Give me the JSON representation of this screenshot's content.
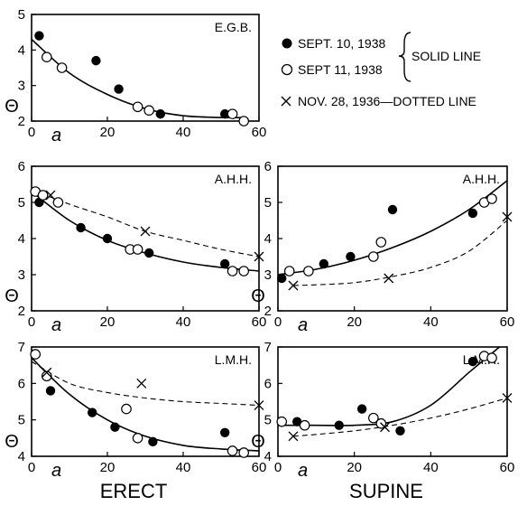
{
  "legend": {
    "items": [
      {
        "label": "SEPT. 10, 1938",
        "marker": "filled-circle"
      },
      {
        "label": "SEPT 11, 1938",
        "marker": "open-circle"
      },
      {
        "label": "NOV. 28, 1936—DOTTED LINE",
        "marker": "cross"
      }
    ],
    "brace_label": "SOLID LINE"
  },
  "column_labels": {
    "left": "ERECT",
    "right": "SUPINE"
  },
  "chart_data": [
    {
      "type": "scatter",
      "title": "E.G.B.",
      "xlabel": "a",
      "ylabel": "Θ",
      "xlim": [
        0,
        60
      ],
      "ylim": [
        2,
        5
      ],
      "xticks": [
        "0",
        "20",
        "40",
        "60"
      ],
      "yticks": [
        "2",
        "3",
        "4",
        "5"
      ],
      "series": [
        {
          "name": "SEPT. 10, 1938",
          "marker": "filled-circle",
          "x": [
            2,
            17,
            23,
            34,
            51
          ],
          "y": [
            4.4,
            3.7,
            2.9,
            2.2,
            2.2
          ]
        },
        {
          "name": "SEPT 11, 1938",
          "marker": "open-circle",
          "x": [
            4,
            8,
            28,
            31,
            53,
            56
          ],
          "y": [
            3.8,
            3.5,
            2.4,
            2.3,
            2.2,
            2.0
          ]
        }
      ],
      "curves": [
        {
          "style": "solid",
          "x": [
            0,
            10,
            20,
            30,
            40,
            50,
            56
          ],
          "y": [
            4.3,
            3.35,
            2.75,
            2.35,
            2.15,
            2.1,
            2.1
          ]
        }
      ]
    },
    {
      "type": "scatter",
      "title": "A.H.H.",
      "xlabel": "a",
      "ylabel": "Θ",
      "xlim": [
        0,
        60
      ],
      "ylim": [
        2,
        6
      ],
      "xticks": [
        "0",
        "20",
        "40",
        "60"
      ],
      "yticks": [
        "2",
        "3",
        "4",
        "5",
        "6"
      ],
      "series": [
        {
          "name": "SEPT. 10, 1938",
          "marker": "filled-circle",
          "x": [
            2,
            13,
            20,
            31,
            51
          ],
          "y": [
            5.0,
            4.3,
            4.0,
            3.6,
            3.3
          ]
        },
        {
          "name": "SEPT 11, 1938",
          "marker": "open-circle",
          "x": [
            1,
            3,
            7,
            26,
            28,
            53,
            56
          ],
          "y": [
            5.3,
            5.2,
            5.0,
            3.7,
            3.7,
            3.1,
            3.1
          ]
        },
        {
          "name": "NOV. 28, 1936",
          "marker": "cross",
          "x": [
            5,
            30,
            60
          ],
          "y": [
            5.2,
            4.2,
            3.5
          ]
        }
      ],
      "curves": [
        {
          "style": "solid",
          "x": [
            0,
            10,
            20,
            30,
            40,
            50,
            60
          ],
          "y": [
            5.3,
            4.5,
            3.95,
            3.6,
            3.35,
            3.2,
            3.1
          ]
        },
        {
          "style": "dashed",
          "x": [
            0,
            10,
            20,
            30,
            40,
            50,
            60
          ],
          "y": [
            5.35,
            4.95,
            4.6,
            4.2,
            3.95,
            3.7,
            3.5
          ]
        }
      ]
    },
    {
      "type": "scatter",
      "title": "A.H.H.",
      "xlabel": "a",
      "ylabel": "Θ",
      "xlim": [
        0,
        60
      ],
      "ylim": [
        2,
        6
      ],
      "xticks": [
        "0",
        "20",
        "40",
        "60"
      ],
      "yticks": [
        "2",
        "3",
        "4",
        "5",
        "6"
      ],
      "series": [
        {
          "name": "SEPT. 10, 1938",
          "marker": "filled-circle",
          "x": [
            1,
            12,
            19,
            30,
            51
          ],
          "y": [
            2.9,
            3.3,
            3.5,
            4.8,
            4.7
          ]
        },
        {
          "name": "SEPT 11, 1938",
          "marker": "open-circle",
          "x": [
            3,
            8,
            25,
            27,
            54,
            56
          ],
          "y": [
            3.1,
            3.1,
            3.5,
            3.9,
            5.0,
            5.1
          ]
        },
        {
          "name": "NOV. 28, 1936",
          "marker": "cross",
          "x": [
            4,
            29,
            60
          ],
          "y": [
            2.7,
            2.9,
            4.6
          ]
        }
      ],
      "curves": [
        {
          "style": "solid",
          "x": [
            0,
            10,
            20,
            30,
            40,
            50,
            60
          ],
          "y": [
            3.0,
            3.15,
            3.4,
            3.75,
            4.2,
            4.8,
            5.6
          ]
        },
        {
          "style": "dashed",
          "x": [
            4,
            10,
            20,
            30,
            40,
            50,
            60
          ],
          "y": [
            2.7,
            2.72,
            2.78,
            2.95,
            3.2,
            3.65,
            4.5
          ]
        }
      ]
    },
    {
      "type": "scatter",
      "title": "L.M.H.",
      "xlabel": "a",
      "ylabel": "Θ",
      "xlim": [
        0,
        60
      ],
      "ylim": [
        4,
        7
      ],
      "xticks": [
        "0",
        "20",
        "40",
        "60"
      ],
      "yticks": [
        "4",
        "5",
        "6",
        "7"
      ],
      "series": [
        {
          "name": "SEPT. 10, 1938",
          "marker": "filled-circle",
          "x": [
            5,
            16,
            22,
            32,
            51
          ],
          "y": [
            5.8,
            5.2,
            4.8,
            4.4,
            4.65
          ]
        },
        {
          "name": "SEPT 11, 1938",
          "marker": "open-circle",
          "x": [
            1,
            4,
            25,
            28,
            53,
            56
          ],
          "y": [
            6.8,
            6.2,
            5.3,
            4.5,
            4.15,
            4.1
          ]
        },
        {
          "name": "NOV. 28, 1936",
          "marker": "cross",
          "x": [
            4,
            29,
            60
          ],
          "y": [
            6.3,
            6.0,
            5.4
          ]
        }
      ],
      "curves": [
        {
          "style": "solid",
          "x": [
            0,
            10,
            20,
            30,
            40,
            50,
            60
          ],
          "y": [
            6.7,
            5.7,
            5.0,
            4.55,
            4.3,
            4.2,
            4.15
          ]
        },
        {
          "style": "dashed",
          "x": [
            0,
            10,
            20,
            30,
            40,
            50,
            60
          ],
          "y": [
            6.6,
            6.0,
            5.75,
            5.6,
            5.5,
            5.45,
            5.4
          ]
        }
      ]
    },
    {
      "type": "scatter",
      "title": "L.M.H.",
      "xlabel": "a",
      "ylabel": "Θ",
      "xlim": [
        0,
        60
      ],
      "ylim": [
        4,
        7
      ],
      "xticks": [
        "0",
        "20",
        "40",
        "60"
      ],
      "yticks": [
        "4",
        "5",
        "6",
        "7"
      ],
      "series": [
        {
          "name": "SEPT. 10, 1938",
          "marker": "filled-circle",
          "x": [
            5,
            16,
            22,
            32,
            51
          ],
          "y": [
            4.95,
            4.85,
            5.3,
            4.7,
            6.6
          ]
        },
        {
          "name": "SEPT 11, 1938",
          "marker": "open-circle",
          "x": [
            1,
            7,
            25,
            27,
            54,
            56
          ],
          "y": [
            4.95,
            4.85,
            5.05,
            4.9,
            6.75,
            6.7
          ]
        },
        {
          "name": "NOV. 28, 1936",
          "marker": "cross",
          "x": [
            4,
            28,
            60
          ],
          "y": [
            4.55,
            4.8,
            5.6
          ]
        }
      ],
      "curves": [
        {
          "style": "solid",
          "x": [
            0,
            10,
            20,
            30,
            40,
            50,
            58
          ],
          "y": [
            4.85,
            4.85,
            4.85,
            4.95,
            5.4,
            6.3,
            7.0
          ]
        },
        {
          "style": "dashed",
          "x": [
            4,
            10,
            20,
            30,
            40,
            50,
            60
          ],
          "y": [
            4.55,
            4.6,
            4.7,
            4.85,
            5.05,
            5.3,
            5.6
          ]
        }
      ]
    }
  ]
}
